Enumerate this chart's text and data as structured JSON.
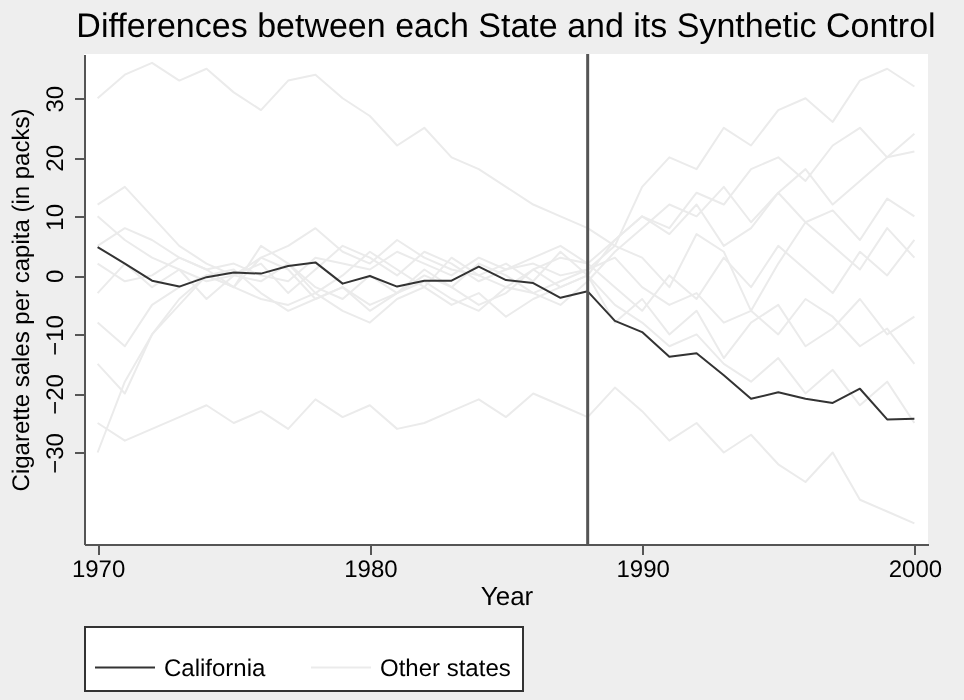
{
  "chart_data": {
    "type": "line",
    "title": "Differences between each State and its Synthetic Control",
    "xlabel": "Year",
    "ylabel": "Cigarette sales per capita (in packs)",
    "x": [
      1970,
      1971,
      1972,
      1973,
      1974,
      1975,
      1976,
      1977,
      1978,
      1979,
      1980,
      1981,
      1982,
      1983,
      1984,
      1985,
      1986,
      1987,
      1988,
      1989,
      1990,
      1991,
      1992,
      1993,
      1994,
      1995,
      1996,
      1997,
      1998,
      1999,
      2000
    ],
    "series": [
      {
        "name": "California",
        "color": "#333333",
        "values": [
          4.8,
          2.0,
          -0.9,
          -1.9,
          -0.3,
          0.5,
          0.3,
          1.6,
          2.2,
          -1.4,
          -0.1,
          -1.9,
          -0.9,
          -0.9,
          1.5,
          -0.8,
          -1.3,
          -3.8,
          -2.7,
          -7.7,
          -9.6,
          -13.8,
          -13.2,
          -16.9,
          -20.9,
          -19.8,
          -20.9,
          -21.6,
          -19.2,
          -24.4,
          -24.3
        ]
      },
      {
        "name": "Other states",
        "color": "#ebebeb",
        "values": [
          12,
          15,
          10,
          5,
          2,
          0,
          3,
          5,
          8,
          4,
          2,
          6,
          3,
          1,
          0,
          -2,
          1,
          3,
          2,
          6,
          10,
          8,
          14,
          12,
          18,
          20,
          16,
          22,
          25,
          20,
          21
        ]
      },
      {
        "color": "#ebebeb",
        "values": [
          -8,
          -12,
          -5,
          -2,
          0,
          1,
          -3,
          -6,
          -4,
          -2,
          -5,
          -3,
          -1,
          -4,
          -6,
          -2,
          -3,
          -5,
          -1,
          4,
          8,
          12,
          10,
          15,
          9,
          14,
          18,
          12,
          16,
          20,
          24
        ]
      },
      {
        "color": "#ebebeb",
        "values": [
          -15,
          -20,
          -10,
          -4,
          0,
          -2,
          -4,
          -5,
          -3,
          -6,
          -8,
          -4,
          -2,
          -5,
          -3,
          -7,
          -4,
          -2,
          0,
          -5,
          -8,
          -12,
          -10,
          -15,
          -18,
          -14,
          -20,
          -16,
          -22,
          -18,
          -25
        ]
      },
      {
        "color": "#ebebeb",
        "values": [
          5,
          8,
          6,
          3,
          1,
          2,
          0,
          -1,
          3,
          2,
          1,
          4,
          2,
          0,
          3,
          1,
          2,
          0,
          1,
          3,
          -2,
          -5,
          -3,
          -8,
          -6,
          -10,
          -4,
          -7,
          -12,
          -9,
          -15
        ]
      },
      {
        "color": "#ebebeb",
        "values": [
          -25,
          -28,
          -26,
          -24,
          -22,
          -25,
          -23,
          -26,
          -21,
          -24,
          -22,
          -26,
          -25,
          -23,
          -21,
          -24,
          -20,
          -22,
          -24,
          -19,
          -23,
          -28,
          -25,
          -30,
          -27,
          -32,
          -35,
          -30,
          -38,
          -40,
          -42
        ]
      },
      {
        "color": "#ebebeb",
        "values": [
          30,
          34,
          36,
          33,
          35,
          31,
          28,
          33,
          34,
          30,
          27,
          22,
          25,
          20,
          18,
          15,
          12,
          10,
          8,
          5,
          15,
          20,
          18,
          25,
          22,
          28,
          30,
          26,
          33,
          35,
          32
        ]
      },
      {
        "color": "#ebebeb",
        "values": [
          2,
          -1,
          0,
          3,
          1,
          -2,
          5,
          2,
          -3,
          0,
          4,
          1,
          -2,
          3,
          0,
          2,
          -1,
          4,
          0,
          6,
          10,
          7,
          12,
          5,
          8,
          14,
          9,
          11,
          6,
          13,
          10
        ]
      },
      {
        "color": "#ebebeb",
        "values": [
          10,
          6,
          3,
          1,
          -1,
          0,
          2,
          -3,
          1,
          5,
          3,
          0,
          4,
          2,
          -1,
          1,
          3,
          5,
          2,
          -2,
          -6,
          0,
          -4,
          3,
          -2,
          5,
          1,
          -3,
          4,
          0,
          6
        ]
      },
      {
        "color": "#ebebeb",
        "values": [
          -3,
          2,
          -2,
          1,
          -4,
          0,
          -1,
          2,
          -2,
          -4,
          0,
          -3,
          1,
          -2,
          2,
          0,
          -3,
          -1,
          1,
          5,
          3,
          -2,
          7,
          4,
          -6,
          2,
          9,
          5,
          1,
          8,
          3
        ]
      },
      {
        "color": "#ebebeb",
        "values": [
          -30,
          -18,
          -10,
          -5,
          0,
          -2,
          3,
          1,
          -4,
          -2,
          -6,
          -3,
          0,
          -2,
          -5,
          -3,
          1,
          -2,
          0,
          -8,
          -4,
          -10,
          -6,
          -14,
          -8,
          -5,
          -12,
          -9,
          -4,
          -10,
          -7
        ]
      }
    ],
    "xlim": [
      1969.5,
      2000.5
    ],
    "xticks": [
      1970,
      1980,
      1990,
      2000
    ],
    "ylim": [
      -45.5,
      37.5
    ],
    "yticks": [
      -30,
      -20,
      -10,
      0,
      10,
      20,
      30
    ],
    "ref_lines": [
      {
        "axis": "x",
        "value": 1988,
        "color": "#555555"
      }
    ],
    "grid": false,
    "legend": "bottom",
    "marker": "none",
    "line_style": "solid"
  }
}
